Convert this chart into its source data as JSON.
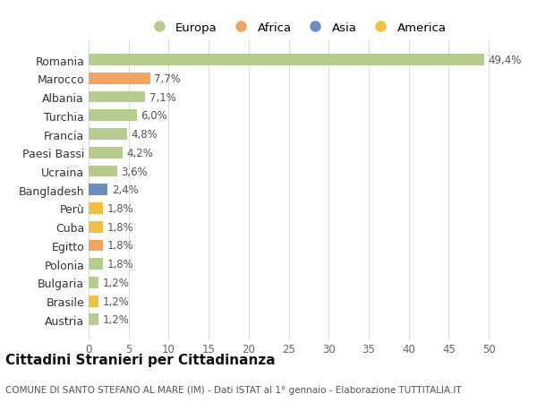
{
  "categories": [
    "Romania",
    "Marocco",
    "Albania",
    "Turchia",
    "Francia",
    "Paesi Bassi",
    "Ucraina",
    "Bangladesh",
    "Perù",
    "Cuba",
    "Egitto",
    "Polonia",
    "Bulgaria",
    "Brasile",
    "Austria"
  ],
  "values": [
    49.4,
    7.7,
    7.1,
    6.0,
    4.8,
    4.2,
    3.6,
    2.4,
    1.8,
    1.8,
    1.8,
    1.8,
    1.2,
    1.2,
    1.2
  ],
  "labels": [
    "49,4%",
    "7,7%",
    "7,1%",
    "6,0%",
    "4,8%",
    "4,2%",
    "3,6%",
    "2,4%",
    "1,8%",
    "1,8%",
    "1,8%",
    "1,8%",
    "1,2%",
    "1,2%",
    "1,2%"
  ],
  "continents": [
    "Europa",
    "Africa",
    "Europa",
    "Europa",
    "Europa",
    "Europa",
    "Europa",
    "Asia",
    "America",
    "America",
    "Africa",
    "Europa",
    "Europa",
    "America",
    "Europa"
  ],
  "colors": {
    "Europa": "#b5cc8e",
    "Africa": "#f4a460",
    "Asia": "#6b8fc4",
    "America": "#f0c040"
  },
  "title": "Cittadini Stranieri per Cittadinanza",
  "subtitle": "COMUNE DI SANTO STEFANO AL MARE (IM) - Dati ISTAT al 1° gennaio - Elaborazione TUTTITALIA.IT",
  "xlim": [
    0,
    52
  ],
  "xticks": [
    0,
    5,
    10,
    15,
    20,
    25,
    30,
    35,
    40,
    45,
    50
  ],
  "background_color": "#ffffff",
  "grid_color": "#dddddd",
  "label_fontsize": 8.5,
  "bar_label_color": "#555555",
  "ytick_fontsize": 9,
  "xtick_fontsize": 8.5,
  "title_fontsize": 11,
  "subtitle_fontsize": 7.5,
  "legend_fontsize": 9.5
}
